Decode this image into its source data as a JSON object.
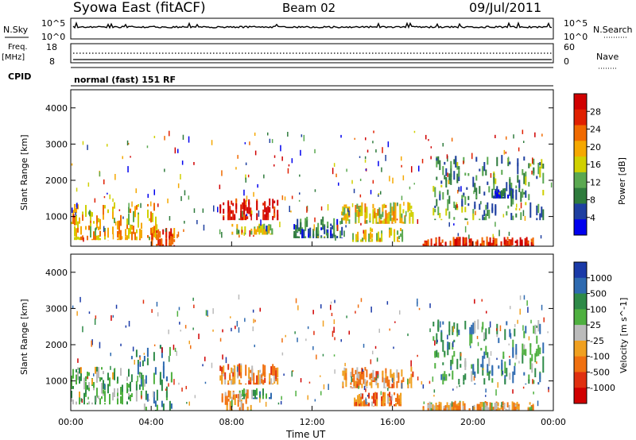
{
  "header": {
    "station": "Syowa East (fitACF)",
    "beam": "Beam 02",
    "date": "09/Jul/2011"
  },
  "top_panels": {
    "nsky_label": "N.Sky",
    "nsky_ticks": [
      "10^5",
      "10^0"
    ],
    "nsearch_label": "N.Search",
    "nsearch_ticks": [
      "10^5",
      "10^0"
    ],
    "freq_label": "Freq.",
    "freq_unit": "[MHz]",
    "freq_ticks": [
      "18",
      "8"
    ],
    "nave_label": "Nave",
    "nave_ticks": [
      "60",
      "0"
    ],
    "cpid_label": "CPID",
    "cpid_text": "normal (fast) 151 RF"
  },
  "colors": {
    "power_scale": [
      "#0000ee",
      "#1e3fa0",
      "#2e7b3c",
      "#5aa850",
      "#d0d000",
      "#f5a800",
      "#f06a00",
      "#e02000",
      "#d00000"
    ],
    "velocity_scale": [
      "#1a3aa8",
      "#2e6ab0",
      "#2e8a48",
      "#4fb040",
      "#bbbbbb",
      "#f0a020",
      "#f07010",
      "#e03010",
      "#d00000"
    ]
  },
  "chart_data": [
    {
      "type": "heatmap",
      "name": "power",
      "xlabel": "Time UT",
      "ylabel": "Slant Range [km]",
      "ylim": [
        180,
        4500
      ],
      "xlim": [
        "00:00",
        "24:00"
      ],
      "x_ticks": [
        "00:00",
        "04:00",
        "08:00",
        "12:00",
        "16:00",
        "20:00",
        "00:00"
      ],
      "y_ticks": [
        "1000",
        "2000",
        "3000",
        "4000"
      ],
      "colorbar": {
        "label": "Power [dB]",
        "ticks": [
          "4",
          "8",
          "12",
          "16",
          "20",
          "24",
          "28"
        ],
        "range": [
          0,
          30
        ]
      },
      "patches": [
        {
          "t": [
            0.0,
            4.2
          ],
          "r": [
            350,
            1400
          ],
          "level": 0.6
        },
        {
          "t": [
            4.0,
            5.2
          ],
          "r": [
            180,
            700
          ],
          "level": 0.8
        },
        {
          "t": [
            7.4,
            10.3
          ],
          "r": [
            900,
            1500
          ],
          "level": 0.9
        },
        {
          "t": [
            8.0,
            10.0
          ],
          "r": [
            500,
            800
          ],
          "level": 0.5
        },
        {
          "t": [
            11.0,
            13.5
          ],
          "r": [
            400,
            1000
          ],
          "level": 0.25
        },
        {
          "t": [
            13.5,
            17.0
          ],
          "r": [
            800,
            1400
          ],
          "level": 0.55
        },
        {
          "t": [
            14.0,
            16.5
          ],
          "r": [
            300,
            700
          ],
          "level": 0.5
        },
        {
          "t": [
            17.5,
            23.0
          ],
          "r": [
            180,
            450
          ],
          "level": 0.85
        },
        {
          "t": [
            18.0,
            23.5
          ],
          "r": [
            900,
            2700
          ],
          "level": 0.3
        },
        {
          "t": [
            21.0,
            22.0
          ],
          "r": [
            1500,
            1800
          ],
          "level": 0.15
        }
      ]
    },
    {
      "type": "heatmap",
      "name": "velocity",
      "xlabel": "Time UT",
      "ylabel": "Slant Range [km]",
      "ylim": [
        180,
        4500
      ],
      "xlim": [
        "00:00",
        "24:00"
      ],
      "x_ticks": [
        "00:00",
        "04:00",
        "08:00",
        "12:00",
        "16:00",
        "20:00",
        "00:00"
      ],
      "y_ticks": [
        "1000",
        "2000",
        "3000",
        "4000"
      ],
      "colorbar": {
        "label": "Velocity [m s^-1]",
        "ticks": [
          "1000",
          "500",
          "100",
          "25",
          "-25",
          "-100",
          "-500",
          "-1000"
        ],
        "range": [
          1000,
          -1000
        ]
      },
      "patches": [
        {
          "t": [
            0.0,
            3.0
          ],
          "r": [
            350,
            1400
          ],
          "level": 0.4
        },
        {
          "t": [
            3.0,
            5.0
          ],
          "r": [
            180,
            2000
          ],
          "level": 0.3
        },
        {
          "t": [
            7.4,
            10.3
          ],
          "r": [
            900,
            1500
          ],
          "level": 0.65
        },
        {
          "t": [
            7.5,
            9.0
          ],
          "r": [
            180,
            800
          ],
          "level": 0.6
        },
        {
          "t": [
            8.5,
            10.0
          ],
          "r": [
            500,
            800
          ],
          "level": 0.35
        },
        {
          "t": [
            13.5,
            17.0
          ],
          "r": [
            800,
            1400
          ],
          "level": 0.65
        },
        {
          "t": [
            14.0,
            16.5
          ],
          "r": [
            300,
            700
          ],
          "level": 0.7
        },
        {
          "t": [
            17.5,
            23.0
          ],
          "r": [
            180,
            450
          ],
          "level": 0.6
        },
        {
          "t": [
            18.0,
            23.5
          ],
          "r": [
            900,
            2700
          ],
          "level": 0.3
        }
      ]
    }
  ]
}
